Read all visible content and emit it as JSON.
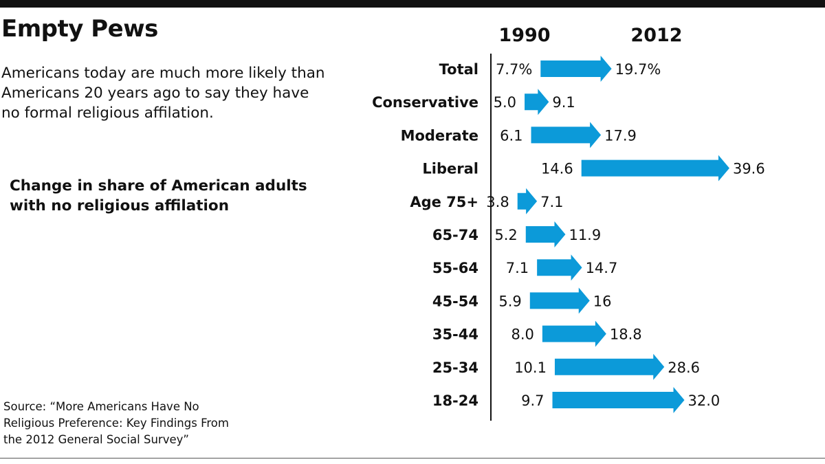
{
  "title": "Empty Pews",
  "dek": "Americans today are much more likely than Americans 20 years ago to say they have no formal religious affilation.",
  "subtitle": "Change in share of American adults with no religious affilation",
  "source": "Source: “More Americans Have No Religious Preference: Key Findings From the 2012 General Social Survey”",
  "colors": {
    "arrow": "#0c9ad9",
    "text": "#111111",
    "rule": "#111111"
  },
  "chart_data": {
    "type": "bar",
    "style": "arrow change chart (1990 to 2012)",
    "series": [
      {
        "name": "1990"
      },
      {
        "name": "2012"
      }
    ],
    "categories": [
      "Total",
      "Conservative",
      "Moderate",
      "Liberal",
      "Age 75+",
      "65-74",
      "55-64",
      "45-54",
      "35-44",
      "25-34",
      "18-24"
    ],
    "start_values": [
      7.7,
      5.0,
      6.1,
      14.6,
      3.8,
      5.2,
      7.1,
      5.9,
      8.0,
      10.1,
      9.7
    ],
    "end_values": [
      19.7,
      9.1,
      17.9,
      39.6,
      7.1,
      11.9,
      14.7,
      16,
      18.8,
      28.6,
      32.0
    ],
    "start_labels": [
      "7.7%",
      "5.0",
      "6.1",
      "14.6",
      "3.8",
      "5.2",
      "7.1",
      "5.9",
      "8.0",
      "10.1",
      "9.7"
    ],
    "end_labels": [
      "19.7%",
      "9.1",
      "17.9",
      "39.6",
      "7.1",
      "11.9",
      "14.7",
      "16",
      "18.8",
      "28.6",
      "32.0"
    ],
    "xlim": [
      0,
      45
    ],
    "unit": "%"
  }
}
